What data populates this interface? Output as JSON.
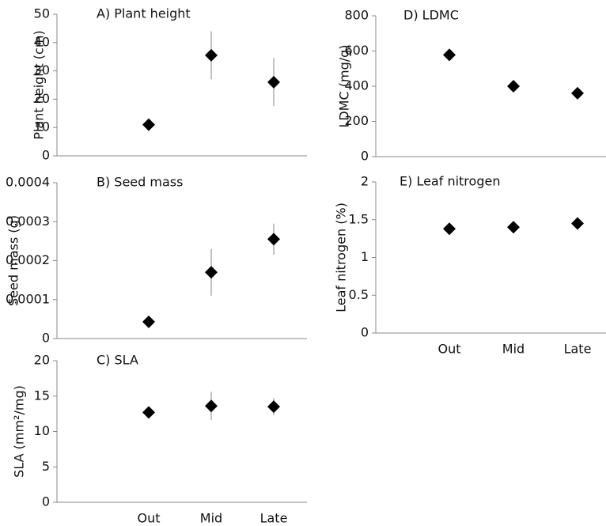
{
  "chart_data": [
    {
      "type": "scatter",
      "title": "A) Plant height",
      "y_label": "Plant height (cm)",
      "values": [
        11,
        35.5,
        26
      ],
      "errors": [
        2,
        8.5,
        8.5
      ],
      "color": "#000000",
      "ylim": [
        0,
        50
      ],
      "yticks": [
        0,
        10,
        20,
        30,
        40,
        50
      ]
    },
    {
      "type": "scatter",
      "title": "B) Seed mass",
      "y_label": "Seed mass (g)",
      "values": [
        4.3e-05,
        0.00017,
        0.000255
      ],
      "errors": [
        5e-06,
        6e-05,
        4e-05
      ],
      "color": "#000000",
      "ylim": [
        0,
        0.0004
      ],
      "yticks": [
        0,
        0.0001,
        0.0002,
        0.0003,
        0.0004
      ]
    },
    {
      "type": "scatter",
      "title": "C) SLA",
      "y_label": "SLA (mm²/mg)",
      "categories": [
        "Out",
        "Mid",
        "Late"
      ],
      "values": [
        12.7,
        13.6,
        13.5
      ],
      "errors": [
        0.5,
        2,
        1.2
      ],
      "color": "#000000",
      "ylim": [
        0,
        20
      ],
      "yticks": [
        0,
        5,
        10,
        15,
        20
      ]
    },
    {
      "type": "scatter",
      "title": "D) LDMC",
      "y_label": "LDMC (mg/g)",
      "values": [
        578,
        400,
        360
      ],
      "color": "#000000",
      "ylim": [
        0,
        800
      ],
      "yticks": [
        0,
        200,
        400,
        600,
        800
      ]
    },
    {
      "type": "scatter",
      "title": "E) Leaf nitrogen",
      "y_label": "Leaf nitrogen (%)",
      "categories": [
        "Out",
        "Mid",
        "Late"
      ],
      "values": [
        1.38,
        1.4,
        1.45
      ],
      "color": "#000000",
      "ylim": [
        0,
        2
      ],
      "yticks": [
        0,
        0.5,
        1,
        1.5,
        2
      ]
    }
  ]
}
